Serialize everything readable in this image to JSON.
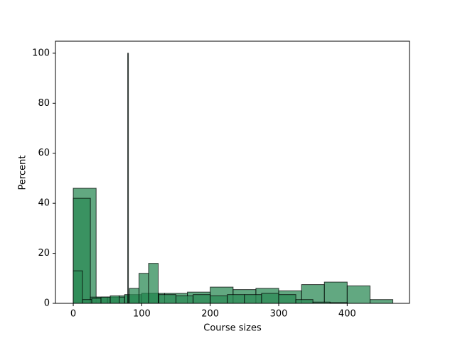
{
  "chart_data": {
    "type": "histogram",
    "xlabel": "Course sizes",
    "ylabel": "Percent",
    "xlim": [
      -26,
      491
    ],
    "ylim": [
      0,
      104.8
    ],
    "xticks": [
      0,
      100,
      200,
      300,
      400
    ],
    "yticks": [
      0,
      20,
      40,
      60,
      80,
      100
    ],
    "series": [
      {
        "color": "#2e8b57",
        "bins": [
          0,
          33.4,
          66.7,
          100,
          133.4,
          166.7,
          200,
          233.4,
          266.7,
          300,
          333.4,
          366.7,
          400,
          433.4,
          466.7
        ],
        "values": [
          46,
          2.5,
          3,
          4,
          4,
          4.5,
          6.5,
          5.5,
          6,
          5,
          7.5,
          8.5,
          7,
          1.5
        ]
      },
      {
        "color": "#2e8b57",
        "bins": [
          0,
          25,
          50,
          75,
          100,
          125,
          150,
          175,
          200,
          225,
          250,
          275,
          300,
          325,
          350,
          375,
          400
        ],
        "values": [
          42,
          2.5,
          2.5,
          3.5,
          4,
          3.5,
          3,
          3.5,
          3,
          3.5,
          3.5,
          4,
          3.5,
          1.5,
          0.5,
          0.3
        ]
      },
      {
        "color": "#2e8b57",
        "bins": [
          0,
          13.5,
          27,
          40.5,
          54,
          67.5
        ],
        "values": [
          13,
          1.5,
          2,
          2.5,
          3
        ]
      },
      {
        "color": "#2e8b57",
        "bins": [
          79.5,
          80.5
        ],
        "values": [
          100
        ]
      },
      {
        "color": "#2e8b57",
        "bins": [
          82,
          96,
          110,
          124
        ],
        "values": [
          6,
          12,
          16
        ]
      }
    ]
  }
}
